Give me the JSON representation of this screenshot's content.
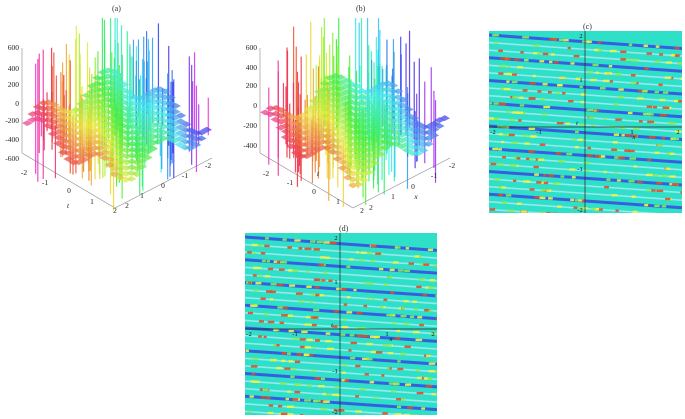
{
  "panels": [
    {
      "label": "(a)",
      "type": "surface-3d",
      "z_ticks": [
        "600",
        "400",
        "200",
        "0",
        "-200",
        "-400",
        "-600"
      ],
      "t_ticks": [
        "-2",
        "-1",
        "0",
        "1",
        "2"
      ],
      "x_ticks": [
        "2",
        "1",
        "0",
        "-1",
        "-2"
      ],
      "t_label": "t",
      "x_label": "x"
    },
    {
      "label": "(b)",
      "type": "surface-3d",
      "z_ticks": [
        "600",
        "400",
        "200",
        "0",
        "-200",
        "-400"
      ],
      "t_ticks": [
        "-2",
        "-1",
        "0",
        "1",
        "2"
      ],
      "x_ticks": [
        "2",
        "1",
        "0",
        "-1",
        "-2"
      ],
      "t_label": "t",
      "x_label": "x"
    },
    {
      "label": "(c)",
      "type": "density",
      "axis_ticks": [
        "-2",
        "-1",
        "1",
        "2"
      ],
      "x_label": "x",
      "t_label": "t"
    },
    {
      "label": "(d)",
      "type": "density",
      "axis_ticks": [
        "-2",
        "-1",
        "1",
        "2"
      ],
      "x_label": "x",
      "t_label": "t"
    }
  ],
  "colors": {
    "density_bg": "#2fe0c8",
    "stripe_blue": "#3a4fe0",
    "stripe_light": "#a6e8f0",
    "stripe_yellow": "#f4f04a",
    "stripe_red": "#e84a2a",
    "stripe_green": "#8ce85a"
  }
}
